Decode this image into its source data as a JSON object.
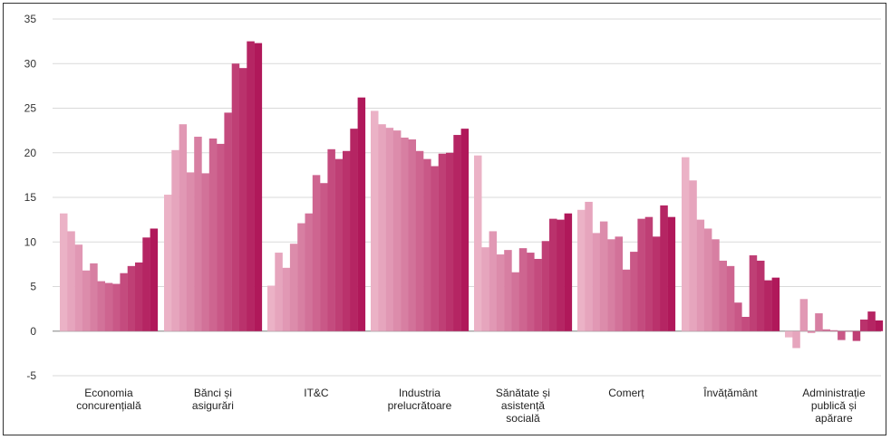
{
  "chart_data": {
    "type": "bar",
    "title": "",
    "xlabel": "",
    "ylabel": "",
    "ylim": [
      -5,
      35
    ],
    "yticks": [
      -5,
      0,
      5,
      10,
      15,
      20,
      25,
      30,
      35
    ],
    "grid": true,
    "legend": "none",
    "colors": {
      "light": "#EBB2C6",
      "dark": "#B0185A",
      "grid": "#D9D9D9",
      "axis": "#9A9A9A"
    },
    "categories": [
      {
        "label": [
          "Economia",
          "concurențială"
        ],
        "values": [
          13.2,
          11.2,
          9.7,
          6.8,
          7.6,
          5.6,
          5.4,
          5.3,
          6.5,
          7.3,
          7.7,
          10.5,
          11.5
        ]
      },
      {
        "label": [
          "Bănci și",
          "asigurări"
        ],
        "values": [
          15.3,
          20.3,
          23.2,
          17.8,
          21.8,
          17.7,
          21.6,
          21.0,
          24.5,
          30.0,
          29.5,
          32.5,
          32.3
        ]
      },
      {
        "label": [
          "IT&C"
        ],
        "values": [
          5.1,
          8.8,
          7.1,
          9.8,
          12.1,
          13.2,
          17.5,
          16.6,
          20.4,
          19.3,
          20.2,
          22.7,
          26.2
        ]
      },
      {
        "label": [
          "Industria",
          "prelucrătoare"
        ],
        "values": [
          24.7,
          23.2,
          22.8,
          22.5,
          21.7,
          21.5,
          20.2,
          19.3,
          18.5,
          19.9,
          20.0,
          22.0,
          22.7
        ]
      },
      {
        "label": [
          "Sănătate și",
          "asistență",
          "socială"
        ],
        "values": [
          19.7,
          9.4,
          11.2,
          8.6,
          9.1,
          6.6,
          9.3,
          8.8,
          8.1,
          10.1,
          12.6,
          12.5,
          13.2
        ]
      },
      {
        "label": [
          "Comerț"
        ],
        "values": [
          13.6,
          14.5,
          11.0,
          12.3,
          10.3,
          10.6,
          6.9,
          8.9,
          12.6,
          12.8,
          10.6,
          14.1,
          12.8
        ]
      },
      {
        "label": [
          "Învățământ"
        ],
        "values": [
          19.5,
          16.9,
          12.5,
          11.5,
          10.3,
          7.9,
          7.3,
          3.2,
          1.6,
          8.5,
          7.9,
          5.7,
          6.0
        ]
      },
      {
        "label": [
          "Administrație",
          "publică și",
          "apărare"
        ],
        "values": [
          -0.7,
          -1.9,
          3.6,
          -0.2,
          2.0,
          0.2,
          0.1,
          -1.0,
          0.0,
          -1.1,
          1.3,
          2.2,
          1.2
        ]
      }
    ]
  }
}
